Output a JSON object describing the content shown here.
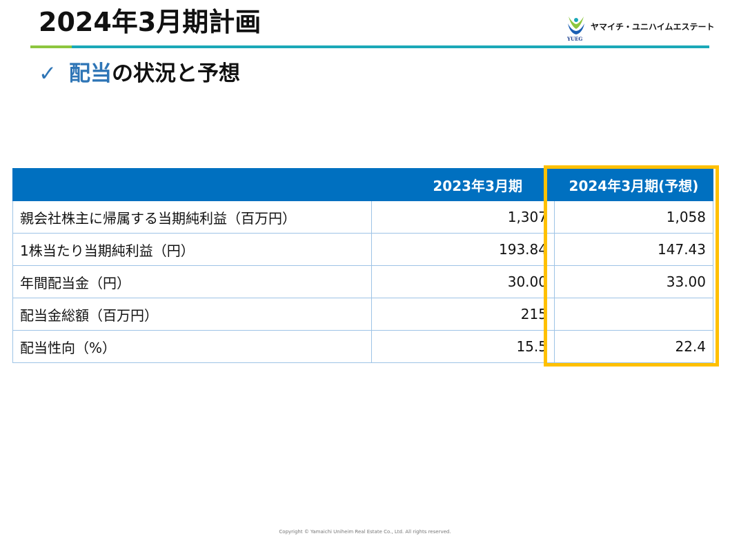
{
  "header": {
    "title": "2024年3月期計画",
    "logo_text": "ヤマイチ・ユニハイムエステート",
    "logo_sub": "YUEG",
    "accent_green": "#8dc63f",
    "accent_teal": "#1aa8b8"
  },
  "section": {
    "check_glyph": "✓",
    "accent_text": "配当",
    "rest_text": "の状況と予想"
  },
  "table": {
    "headers": [
      "",
      "2023年3月期",
      "2024年3月期(予想)"
    ],
    "rows": [
      {
        "label": "親会社株主に帰属する当期純利益（百万円）",
        "prev": "1,307",
        "next": "1,058"
      },
      {
        "label": "1株当たり当期純利益（円）",
        "prev": "193.84",
        "next": "147.43"
      },
      {
        "label": "年間配当金（円）",
        "prev": "30.00",
        "next": "33.00"
      },
      {
        "label": "配当金総額（百万円）",
        "prev": "215",
        "next": ""
      },
      {
        "label": "配当性向（%）",
        "prev": "15.5",
        "next": "22.4"
      }
    ],
    "header_color": "#0070c0",
    "highlight_color": "#ffc000"
  },
  "footer": {
    "copyright": "Copyright © Yamaichi Uniheim Real Estate Co., Ltd. All rights reserved."
  }
}
